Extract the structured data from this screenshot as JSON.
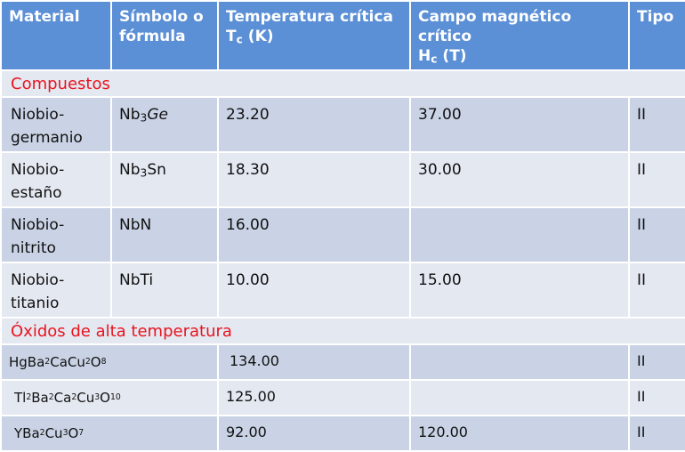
{
  "header": {
    "material": "Material",
    "simbolo_line1": "Símbolo o",
    "simbolo_line2": "fórmula",
    "temp_line1": "Temperatura crítica",
    "temp_symbol": "T",
    "temp_sub": "c",
    "temp_unit": "(K)",
    "campo_line1": "Campo magnético crítico",
    "campo_symbol": "H",
    "campo_sub": "c",
    "campo_unit": "(T)",
    "tipo": "Tipo"
  },
  "sections": {
    "compuestos": "Compuestos",
    "oxidos": "Óxidos de alta temperatura"
  },
  "compuestos": [
    {
      "name1": "Niobio-",
      "name2": "germanio",
      "f_base": "Nb",
      "f_sub": "3",
      "f_rest": "Ge",
      "tc": "23.20",
      "hc": "37.00",
      "tipo": "II"
    },
    {
      "name1": "Niobio-",
      "name2": "estaño",
      "f_base": "Nb",
      "f_sub": "3",
      "f_rest": "Sn",
      "tc": "18.30",
      "hc": "30.00",
      "tipo": "II"
    },
    {
      "name1": "Niobio-",
      "name2": "nitrito",
      "f_base": "NbN",
      "f_sub": "",
      "f_rest": "",
      "tc": "16.00",
      "hc": "",
      "tipo": "II"
    },
    {
      "name1": "Niobio-",
      "name2": "titanio",
      "f_base": "NbTi",
      "f_sub": "",
      "f_rest": "",
      "tc": "10.00",
      "hc": "15.00",
      "tipo": "II"
    }
  ],
  "oxidos": [
    {
      "parts": [
        "HgBa",
        "2",
        "CaCu",
        "2",
        "O",
        "8"
      ],
      "tc": "134.00",
      "hc": "",
      "tipo": "II"
    },
    {
      "parts": [
        "Tl",
        "2",
        "Ba",
        "2",
        "Ca",
        "2",
        "Cu",
        "3",
        "O",
        "10"
      ],
      "tc": "125.00",
      "hc": "",
      "tipo": "II"
    },
    {
      "parts": [
        "YBa",
        "2",
        "Cu",
        "3",
        "O",
        "7"
      ],
      "tc": "92.00",
      "hc": "120.00",
      "tipo": "II"
    }
  ]
}
